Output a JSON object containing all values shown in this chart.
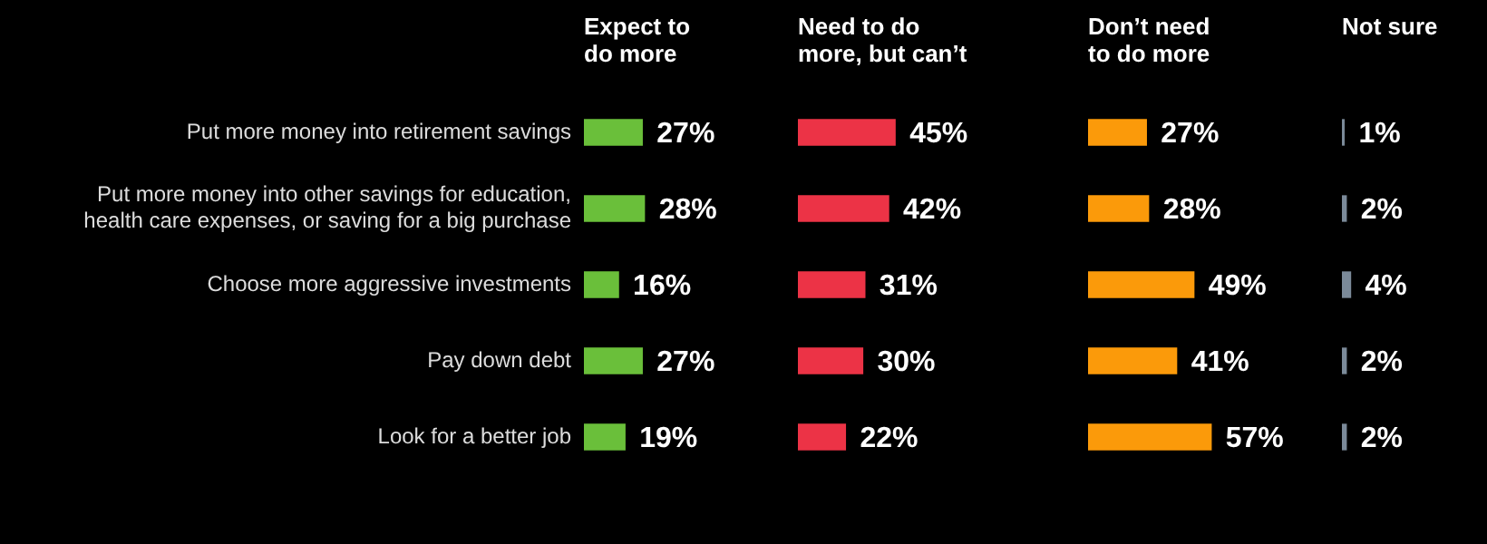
{
  "chart_data": [
    {
      "type": "bar",
      "orientation": "horizontal",
      "title": "Expect to\ndo more",
      "categories": [
        "Put more money into retirement savings",
        "Put more money into other savings for education,\nhealth care expenses, or saving for a big purchase",
        "Choose more aggressive investments",
        "Pay down debt",
        "Look for a better job"
      ],
      "values": [
        27,
        28,
        16,
        27,
        19
      ],
      "value_labels": [
        "27%",
        "28%",
        "16%",
        "27%",
        "19%"
      ],
      "color": "#6abf3a",
      "tick_labels": "y"
    },
    {
      "type": "bar",
      "orientation": "horizontal",
      "title": "Need to do\nmore, but can’t",
      "categories": [
        null,
        null,
        null,
        null,
        null
      ],
      "values": [
        45,
        42,
        31,
        30,
        22
      ],
      "value_labels": [
        "45%",
        "42%",
        "31%",
        "30%",
        "22%"
      ],
      "color": "#ec3346",
      "tick_labels": false
    },
    {
      "type": "bar",
      "orientation": "horizontal",
      "title": "Don’t need\nto do more",
      "categories": [
        null,
        null,
        null,
        null,
        null
      ],
      "values": [
        27,
        28,
        49,
        41,
        57
      ],
      "value_labels": [
        "27%",
        "28%",
        "49%",
        "41%",
        "57%"
      ],
      "color": "#fb9a0a",
      "tick_labels": false
    },
    {
      "type": "bar",
      "orientation": "horizontal",
      "title": "Not sure",
      "categories": [
        null,
        null,
        null,
        null,
        null
      ],
      "values": [
        1,
        2,
        4,
        2,
        2
      ],
      "value_labels": [
        "1%",
        "2%",
        "4%",
        "2%",
        "2%"
      ],
      "color": "#7b8a99",
      "tick_labels": false
    }
  ]
}
